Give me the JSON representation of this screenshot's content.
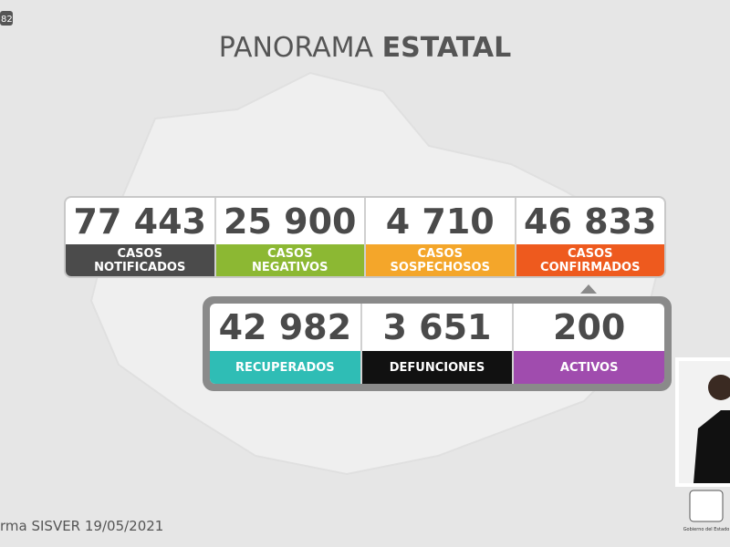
{
  "badge": "82",
  "header": {
    "title_light": "PANORAMA",
    "title_bold": "ESTATAL"
  },
  "row1": [
    {
      "number": "77 443",
      "label": [
        "CASOS",
        "NOTIFICADOS"
      ],
      "color": "#4b4b4b"
    },
    {
      "number": "25 900",
      "label": [
        "CASOS",
        "NEGATIVOS"
      ],
      "color": "#8cb833"
    },
    {
      "number": "4 710",
      "label": [
        "CASOS",
        "SOSPECHOSOS"
      ],
      "color": "#f4a62a"
    },
    {
      "number": "46 833",
      "label": [
        "CASOS",
        "CONFIRMADOS"
      ],
      "color": "#ee5a1e"
    }
  ],
  "row2": [
    {
      "number": "42 982",
      "label": [
        "RECUPERADOS"
      ],
      "color": "#2fbdb5"
    },
    {
      "number": "3 651",
      "label": [
        "DEFUNCIONES"
      ],
      "color": "#111111"
    },
    {
      "number": "200",
      "label": [
        "ACTIVOS"
      ],
      "color": "#a04cae"
    }
  ],
  "footer": {
    "source": "rma SISVER",
    "date": "19/05/2021"
  },
  "logo_caption": "Gobierno del Estado"
}
